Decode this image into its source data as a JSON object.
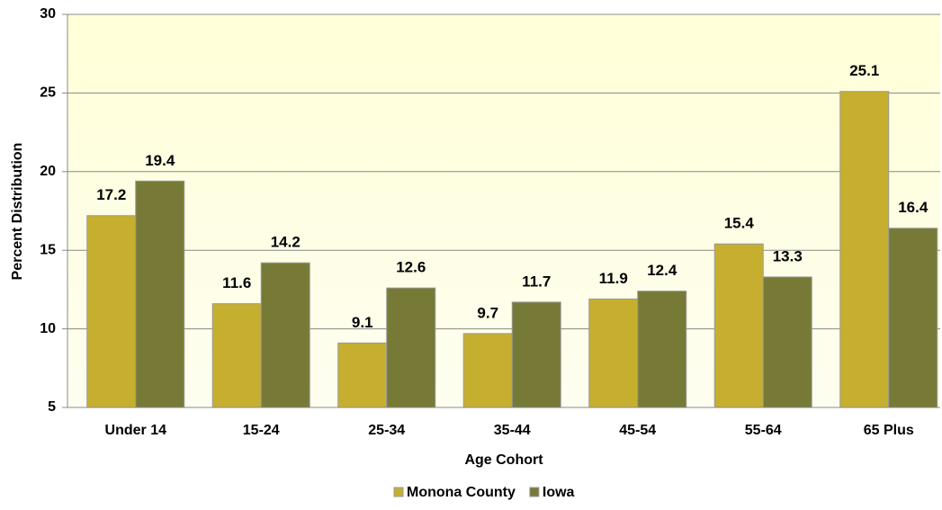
{
  "chart_data": {
    "type": "bar",
    "categories": [
      "Under 14",
      "15-24",
      "25-34",
      "35-44",
      "45-54",
      "55-64",
      "65 Plus"
    ],
    "series": [
      {
        "name": "Monona County",
        "color": "#c6af2f",
        "values": [
          17.2,
          11.6,
          9.1,
          9.7,
          11.9,
          15.4,
          25.1
        ]
      },
      {
        "name": "Iowa",
        "color": "#777a36",
        "values": [
          19.4,
          14.2,
          12.6,
          11.7,
          12.4,
          13.3,
          16.4
        ]
      }
    ],
    "x_label": "Age Cohort",
    "y_label": "Percent Distribution",
    "ylim": [
      5,
      30
    ],
    "yticks": [
      5,
      10,
      15,
      20,
      25,
      30
    ],
    "grid": true,
    "legend": "bottom"
  }
}
